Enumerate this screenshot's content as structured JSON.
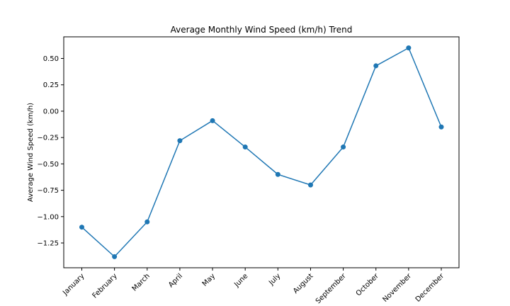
{
  "chart_data": {
    "type": "line",
    "title": "Average Monthly Wind Speed (km/h) Trend",
    "xlabel": "",
    "ylabel": "Average Wind Speed (km/h)",
    "categories": [
      "January",
      "February",
      "March",
      "April",
      "May",
      "June",
      "July",
      "August",
      "September",
      "October",
      "November",
      "December"
    ],
    "series": [
      {
        "values": [
          -1.1,
          -1.38,
          -1.05,
          -0.28,
          -0.09,
          -0.34,
          -0.6,
          -0.7,
          -0.34,
          0.43,
          0.6,
          -0.15
        ],
        "color": "#1f77b4",
        "marker": "circle"
      }
    ],
    "yticks": [
      0.5,
      0.25,
      0.0,
      -0.25,
      -0.5,
      -0.75,
      -1.0,
      -1.25
    ],
    "ytick_labels": [
      "0.50",
      "0.25",
      "0.00",
      "−0.25",
      "−0.50",
      "−0.75",
      "−1.00",
      "−1.25"
    ],
    "ylim": [
      -1.485,
      0.705
    ],
    "grid": false,
    "legend": false
  }
}
